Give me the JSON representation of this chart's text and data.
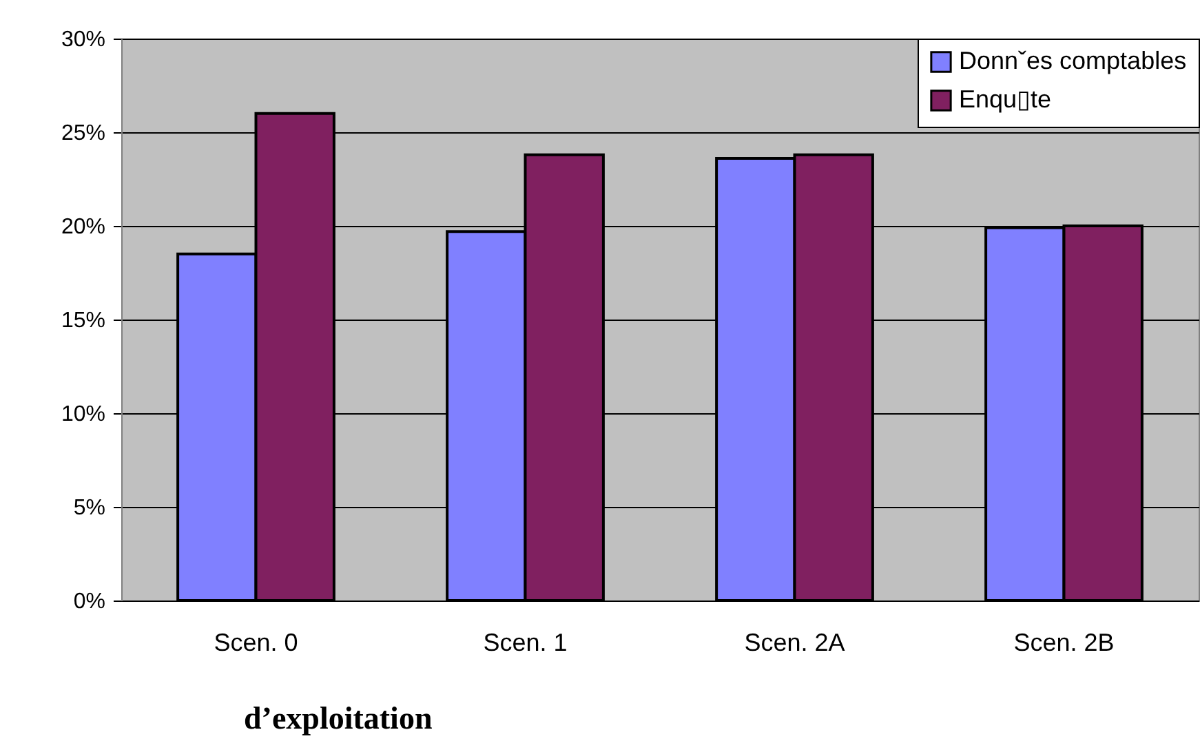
{
  "chart_data": {
    "type": "bar",
    "categories": [
      "Scen. 0",
      "Scen. 1",
      "Scen. 2A",
      "Scen. 2B"
    ],
    "series": [
      {
        "name": "Donnˇes comptables",
        "color": "#8080ff",
        "values": [
          18.5,
          19.7,
          23.6,
          19.9
        ]
      },
      {
        "name": "Enqu▯te",
        "color": "#802060",
        "values": [
          26.0,
          23.8,
          23.8,
          20.0
        ]
      }
    ],
    "ylim": [
      0,
      30
    ],
    "yticks": [
      {
        "value": 0,
        "label": "0%"
      },
      {
        "value": 5,
        "label": "5%"
      },
      {
        "value": 10,
        "label": "10%"
      },
      {
        "value": 15,
        "label": "15%"
      },
      {
        "value": 20,
        "label": "20%"
      },
      {
        "value": 25,
        "label": "25%"
      },
      {
        "value": 30,
        "label": "30%"
      }
    ],
    "grid": "y",
    "legend": "top right",
    "annotations": [
      "d’exploitation"
    ]
  }
}
